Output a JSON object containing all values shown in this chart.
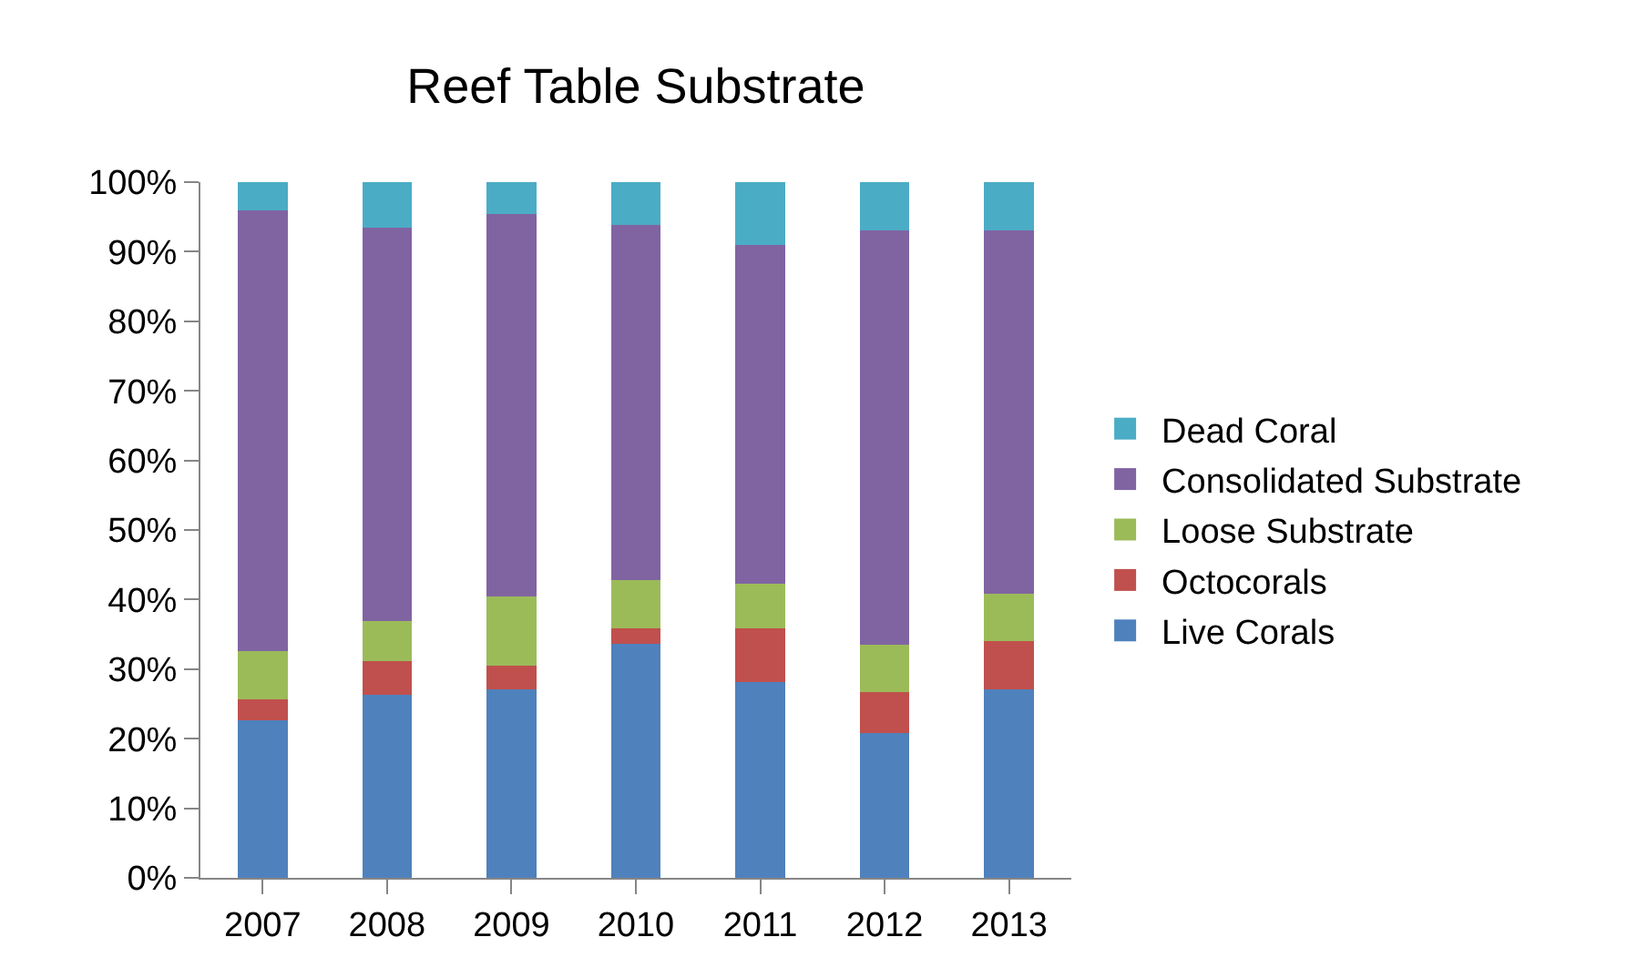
{
  "chart_data": {
    "type": "bar",
    "title": "Reef Table Substrate",
    "stacked": true,
    "legend": "right",
    "categories": [
      "2007",
      "2008",
      "2009",
      "2010",
      "2011",
      "2012",
      "2013"
    ],
    "series": [
      {
        "name": "Live Corals",
        "color": "#4f81bd",
        "values": [
          22.7,
          26.3,
          27.1,
          33.6,
          28.1,
          20.8,
          27.1
        ]
      },
      {
        "name": "Octocorals",
        "color": "#c0504d",
        "values": [
          3.0,
          4.8,
          3.4,
          2.3,
          7.8,
          5.9,
          6.9
        ]
      },
      {
        "name": "Loose Substrate",
        "color": "#9bbb59",
        "values": [
          6.9,
          5.8,
          10.0,
          6.9,
          6.4,
          6.8,
          6.8
        ]
      },
      {
        "name": "Consolidated Substrate",
        "color": "#8064a2",
        "values": [
          63.3,
          56.5,
          54.9,
          51.1,
          48.7,
          59.5,
          52.2
        ]
      },
      {
        "name": "Dead Coral",
        "color": "#4bacc6",
        "values": [
          4.1,
          6.6,
          4.6,
          6.1,
          9.0,
          7.0,
          7.0
        ]
      }
    ],
    "ylim": [
      0,
      100
    ],
    "yticks": [
      {
        "value": 0,
        "label": "0%"
      },
      {
        "value": 10,
        "label": "10%"
      },
      {
        "value": 20,
        "label": "20%"
      },
      {
        "value": 30,
        "label": "30%"
      },
      {
        "value": 40,
        "label": "40%"
      },
      {
        "value": 50,
        "label": "50%"
      },
      {
        "value": 60,
        "label": "60%"
      },
      {
        "value": 70,
        "label": "70%"
      },
      {
        "value": 80,
        "label": "80%"
      },
      {
        "value": 90,
        "label": "90%"
      },
      {
        "value": 100,
        "label": "100%"
      }
    ]
  }
}
